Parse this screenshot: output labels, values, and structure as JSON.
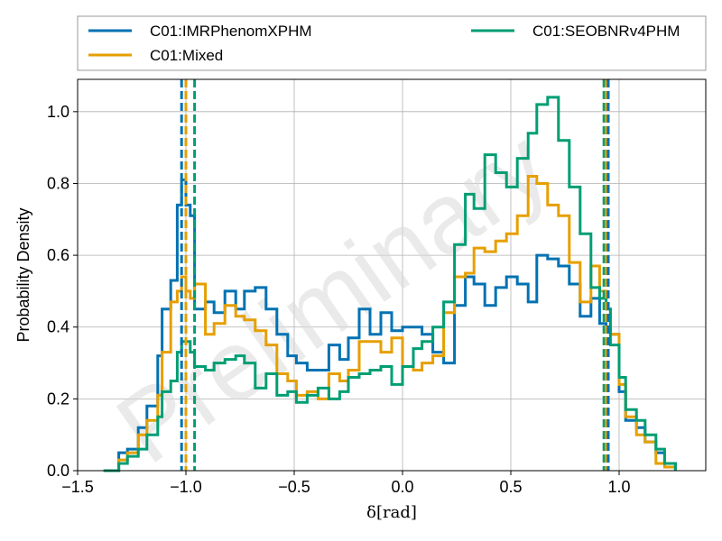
{
  "chart_data": {
    "type": "histogram",
    "xlabel": "δ[rad]",
    "ylabel": "Probability Density",
    "xlim": [
      -1.5,
      1.4
    ],
    "ylim": [
      0,
      1.09
    ],
    "xticks": [
      -1.5,
      -1.0,
      -0.5,
      0.0,
      0.5,
      1.0
    ],
    "xtick_labels": [
      "−1.5",
      "−1.0",
      "−0.5",
      "0.0",
      "0.5",
      "1.0"
    ],
    "yticks": [
      0.0,
      0.2,
      0.4,
      0.6,
      0.8,
      1.0
    ],
    "ytick_labels": [
      "0.0",
      "0.2",
      "0.4",
      "0.6",
      "0.8",
      "1.0"
    ],
    "grid": true,
    "legend_position": "top, outside plot",
    "watermark": "Preliminary",
    "series": [
      {
        "name": "C01:IMRPhenomXPHM",
        "color": "#0072b2",
        "bin_edges": [
          -1.38,
          -1.31,
          -1.27,
          -1.22,
          -1.18,
          -1.13,
          -1.11,
          -1.07,
          -1.04,
          -1.02,
          -1.0,
          -0.98,
          -0.96,
          -0.91,
          -0.87,
          -0.82,
          -0.77,
          -0.73,
          -0.68,
          -0.63,
          -0.58,
          -0.53,
          -0.49,
          -0.44,
          -0.39,
          -0.34,
          -0.29,
          -0.25,
          -0.2,
          -0.15,
          -0.1,
          -0.05,
          0.0,
          0.05,
          0.09,
          0.14,
          0.19,
          0.24,
          0.29,
          0.33,
          0.38,
          0.43,
          0.48,
          0.53,
          0.58,
          0.62,
          0.67,
          0.72,
          0.77,
          0.82,
          0.87,
          0.91,
          0.94,
          0.96,
          1.0,
          1.03,
          1.08,
          1.12,
          1.17,
          1.21,
          1.26
        ],
        "densities": [
          0.0,
          0.05,
          0.06,
          0.12,
          0.18,
          0.32,
          0.45,
          0.53,
          0.74,
          0.81,
          0.74,
          0.71,
          0.45,
          0.47,
          0.44,
          0.5,
          0.45,
          0.5,
          0.51,
          0.45,
          0.38,
          0.32,
          0.3,
          0.28,
          0.28,
          0.35,
          0.31,
          0.37,
          0.45,
          0.38,
          0.44,
          0.39,
          0.4,
          0.4,
          0.38,
          0.33,
          0.3,
          0.46,
          0.54,
          0.52,
          0.46,
          0.51,
          0.54,
          0.52,
          0.47,
          0.6,
          0.59,
          0.57,
          0.52,
          0.43,
          0.48,
          0.41,
          0.4,
          0.38,
          0.22,
          0.14,
          0.12,
          0.08,
          0.05,
          0.02
        ]
      },
      {
        "name": "C01:Mixed",
        "color": "#e69f00",
        "bin_edges": [
          -1.38,
          -1.31,
          -1.27,
          -1.22,
          -1.18,
          -1.13,
          -1.11,
          -1.07,
          -1.04,
          -1.02,
          -1.0,
          -0.98,
          -0.96,
          -0.91,
          -0.87,
          -0.82,
          -0.77,
          -0.73,
          -0.68,
          -0.63,
          -0.58,
          -0.53,
          -0.49,
          -0.44,
          -0.39,
          -0.34,
          -0.29,
          -0.25,
          -0.2,
          -0.15,
          -0.1,
          -0.05,
          0.0,
          0.05,
          0.09,
          0.14,
          0.19,
          0.24,
          0.29,
          0.33,
          0.38,
          0.43,
          0.48,
          0.53,
          0.58,
          0.62,
          0.67,
          0.72,
          0.77,
          0.82,
          0.87,
          0.91,
          0.94,
          0.96,
          1.0,
          1.03,
          1.08,
          1.12,
          1.17,
          1.21,
          1.26
        ],
        "densities": [
          0.0,
          0.03,
          0.05,
          0.1,
          0.14,
          0.21,
          0.33,
          0.47,
          0.5,
          0.54,
          0.5,
          0.48,
          0.52,
          0.38,
          0.41,
          0.46,
          0.43,
          0.42,
          0.39,
          0.35,
          0.27,
          0.25,
          0.21,
          0.22,
          0.2,
          0.27,
          0.25,
          0.28,
          0.36,
          0.36,
          0.33,
          0.37,
          0.29,
          0.28,
          0.3,
          0.32,
          0.44,
          0.54,
          0.55,
          0.62,
          0.61,
          0.64,
          0.66,
          0.71,
          0.82,
          0.8,
          0.74,
          0.71,
          0.58,
          0.47,
          0.57,
          0.5,
          0.45,
          0.38,
          0.24,
          0.15,
          0.1,
          0.08,
          0.02,
          0.01
        ]
      },
      {
        "name": "C01:SEOBNRv4PHM",
        "color": "#009e73",
        "bin_edges": [
          -1.38,
          -1.31,
          -1.27,
          -1.22,
          -1.18,
          -1.13,
          -1.11,
          -1.07,
          -1.04,
          -1.02,
          -1.0,
          -0.98,
          -0.96,
          -0.91,
          -0.87,
          -0.82,
          -0.77,
          -0.73,
          -0.68,
          -0.63,
          -0.58,
          -0.53,
          -0.49,
          -0.44,
          -0.39,
          -0.34,
          -0.29,
          -0.25,
          -0.2,
          -0.15,
          -0.1,
          -0.05,
          0.0,
          0.05,
          0.09,
          0.14,
          0.19,
          0.24,
          0.29,
          0.33,
          0.38,
          0.43,
          0.48,
          0.53,
          0.58,
          0.62,
          0.67,
          0.72,
          0.77,
          0.82,
          0.87,
          0.91,
          0.94,
          0.96,
          1.0,
          1.03,
          1.08,
          1.12,
          1.17,
          1.21,
          1.26
        ],
        "densities": [
          0.0,
          0.02,
          0.04,
          0.06,
          0.1,
          0.15,
          0.22,
          0.25,
          0.33,
          0.36,
          0.36,
          0.33,
          0.29,
          0.28,
          0.3,
          0.31,
          0.32,
          0.3,
          0.23,
          0.27,
          0.21,
          0.22,
          0.19,
          0.21,
          0.23,
          0.2,
          0.22,
          0.26,
          0.27,
          0.28,
          0.29,
          0.24,
          0.29,
          0.34,
          0.36,
          0.4,
          0.47,
          0.63,
          0.77,
          0.73,
          0.88,
          0.83,
          0.79,
          0.87,
          0.94,
          1.02,
          1.04,
          0.92,
          0.79,
          0.66,
          0.51,
          0.48,
          0.45,
          0.35,
          0.26,
          0.17,
          0.14,
          0.1,
          0.06,
          0.02
        ]
      }
    ],
    "vlines": [
      {
        "series": "C01:IMRPhenomXPHM",
        "color": "#0072b2",
        "x": -1.02
      },
      {
        "series": "C01:Mixed",
        "color": "#e69f00",
        "x": -1.0
      },
      {
        "series": "C01:SEOBNRv4PHM",
        "color": "#009e73",
        "x": -0.96
      },
      {
        "series": "C01:SEOBNRv4PHM",
        "color": "#009e73",
        "x": 0.93
      },
      {
        "series": "C01:Mixed",
        "color": "#e69f00",
        "x": 0.94
      },
      {
        "series": "C01:IMRPhenomXPHM",
        "color": "#0072b2",
        "x": 0.95
      }
    ]
  }
}
